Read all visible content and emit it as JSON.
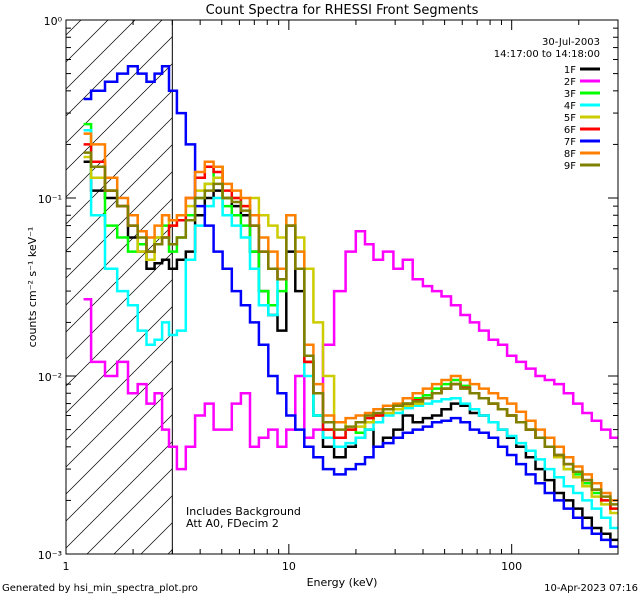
{
  "chart_data": {
    "type": "line",
    "title": "Count Spectra for RHESSI Front Segments",
    "xlabel": "Energy (keV)",
    "ylabel": "counts cm⁻² s⁻¹ keV⁻¹",
    "xscale": "log",
    "yscale": "log",
    "xlim": [
      1,
      300
    ],
    "ylim": [
      0.001,
      1
    ],
    "xticks": [
      {
        "value": 1,
        "label": "1"
      },
      {
        "value": 10,
        "label": "10"
      },
      {
        "value": 100,
        "label": "100"
      }
    ],
    "yticks": [
      {
        "value": 1,
        "label": "10⁰"
      },
      {
        "value": 0.1,
        "label": "10⁻¹"
      },
      {
        "value": 0.01,
        "label": "10⁻²"
      },
      {
        "value": 0.001,
        "label": "10⁻³"
      }
    ],
    "legend_position": "top-right",
    "info_lines": [
      "30-Jul-2003",
      "14:17:00 to 14:18:00"
    ],
    "annotations": [
      "Includes Background",
      "Att A0, FDecim 2"
    ],
    "hatched_region": {
      "x_from": 1,
      "x_to": 3
    },
    "energy_bins": [
      1.2,
      1.4,
      1.6,
      1.8,
      2.0,
      2.2,
      2.4,
      2.6,
      2.8,
      3.0,
      3.3,
      3.6,
      4.0,
      4.4,
      4.8,
      5.3,
      5.8,
      6.4,
      7.0,
      7.7,
      8.5,
      9.3,
      10.2,
      11.2,
      12.3,
      13.5,
      15,
      17,
      19,
      21,
      23,
      25,
      28,
      31,
      34,
      38,
      42,
      46,
      51,
      56,
      62,
      68,
      75,
      83,
      91,
      100,
      110,
      122,
      134,
      148,
      163,
      180,
      198,
      218,
      240,
      265,
      290
    ],
    "series": [
      {
        "name": "1F",
        "color": "#000000",
        "values": [
          0.16,
          0.11,
          0.1,
          0.09,
          0.06,
          0.05,
          0.04,
          0.043,
          0.045,
          0.04,
          0.045,
          0.05,
          0.08,
          0.1,
          0.11,
          0.1,
          0.09,
          0.08,
          0.05,
          0.03,
          0.022,
          0.018,
          0.05,
          0.03,
          0.012,
          0.006,
          0.004,
          0.0035,
          0.004,
          0.0045,
          0.005,
          0.004,
          0.0045,
          0.005,
          0.006,
          0.0055,
          0.0058,
          0.006,
          0.0065,
          0.007,
          0.0068,
          0.0062,
          0.006,
          0.0055,
          0.005,
          0.0045,
          0.004,
          0.0035,
          0.003,
          0.0026,
          0.0022,
          0.002,
          0.0018,
          0.0016,
          0.0014,
          0.0013,
          0.0012
        ]
      },
      {
        "name": "2F",
        "color": "#ff00ff",
        "values": [
          0.027,
          0.012,
          0.01,
          0.012,
          0.008,
          0.009,
          0.007,
          0.008,
          0.005,
          0.004,
          0.003,
          0.004,
          0.006,
          0.007,
          0.005,
          0.005,
          0.007,
          0.008,
          0.004,
          0.0045,
          0.005,
          0.004,
          0.005,
          0.01,
          0.0045,
          0.005,
          0.015,
          0.03,
          0.05,
          0.065,
          0.055,
          0.045,
          0.05,
          0.04,
          0.045,
          0.035,
          0.032,
          0.03,
          0.028,
          0.025,
          0.022,
          0.02,
          0.018,
          0.016,
          0.015,
          0.013,
          0.012,
          0.011,
          0.01,
          0.0095,
          0.009,
          0.008,
          0.007,
          0.0062,
          0.0056,
          0.005,
          0.0045
        ]
      },
      {
        "name": "3F",
        "color": "#00ff00",
        "values": [
          0.26,
          0.13,
          0.07,
          0.06,
          0.05,
          0.055,
          0.05,
          0.06,
          0.07,
          0.05,
          0.06,
          0.08,
          0.1,
          0.12,
          0.15,
          0.09,
          0.08,
          0.07,
          0.05,
          0.03,
          0.025,
          0.03,
          0.08,
          0.04,
          0.012,
          0.006,
          0.005,
          0.0045,
          0.005,
          0.0048,
          0.0055,
          0.006,
          0.0065,
          0.0068,
          0.007,
          0.0075,
          0.0078,
          0.0085,
          0.009,
          0.0095,
          0.0088,
          0.008,
          0.0075,
          0.007,
          0.0065,
          0.006,
          0.0055,
          0.005,
          0.0045,
          0.004,
          0.0035,
          0.003,
          0.0028,
          0.0025,
          0.0022,
          0.002,
          0.0018
        ]
      },
      {
        "name": "4F",
        "color": "#00ffff",
        "values": [
          0.24,
          0.08,
          0.04,
          0.03,
          0.025,
          0.018,
          0.015,
          0.016,
          0.02,
          0.017,
          0.018,
          0.045,
          0.07,
          0.09,
          0.1,
          0.08,
          0.07,
          0.06,
          0.04,
          0.025,
          0.022,
          0.04,
          0.08,
          0.05,
          0.01,
          0.006,
          0.0045,
          0.004,
          0.0042,
          0.0045,
          0.005,
          0.0055,
          0.006,
          0.0062,
          0.0066,
          0.0068,
          0.007,
          0.0072,
          0.0074,
          0.0075,
          0.007,
          0.0065,
          0.006,
          0.0055,
          0.005,
          0.0046,
          0.0042,
          0.0038,
          0.0034,
          0.003,
          0.0027,
          0.0024,
          0.0022,
          0.002,
          0.0018,
          0.0016,
          0.0014
        ]
      },
      {
        "name": "5F",
        "color": "#cccc00",
        "values": [
          0.17,
          0.13,
          0.11,
          0.09,
          0.08,
          0.05,
          0.045,
          0.06,
          0.08,
          0.07,
          0.075,
          0.09,
          0.11,
          0.12,
          0.13,
          0.1,
          0.1,
          0.09,
          0.1,
          0.08,
          0.07,
          0.06,
          0.07,
          0.06,
          0.04,
          0.02,
          0.01,
          0.0055,
          0.005,
          0.0052,
          0.0055,
          0.006,
          0.0062,
          0.0065,
          0.0068,
          0.007,
          0.0075,
          0.008,
          0.0085,
          0.009,
          0.0085,
          0.008,
          0.0075,
          0.007,
          0.0065,
          0.006,
          0.0055,
          0.005,
          0.0045,
          0.004,
          0.0035,
          0.003,
          0.0027,
          0.0024,
          0.0021,
          0.0019,
          0.0017
        ]
      },
      {
        "name": "6F",
        "color": "#ff0000",
        "values": [
          0.2,
          0.16,
          0.11,
          0.09,
          0.07,
          0.065,
          0.05,
          0.055,
          0.06,
          0.07,
          0.075,
          0.1,
          0.13,
          0.15,
          0.14,
          0.11,
          0.1,
          0.09,
          0.07,
          0.05,
          0.04,
          0.035,
          0.07,
          0.04,
          0.012,
          0.008,
          0.005,
          0.0045,
          0.005,
          0.0055,
          0.0058,
          0.006,
          0.0065,
          0.0068,
          0.007,
          0.0073,
          0.0075,
          0.008,
          0.0085,
          0.009,
          0.0086,
          0.008,
          0.0075,
          0.007,
          0.0065,
          0.006,
          0.0055,
          0.005,
          0.0045,
          0.004,
          0.0036,
          0.0032,
          0.0029,
          0.0026,
          0.0023,
          0.002,
          0.0018
        ]
      },
      {
        "name": "7F",
        "color": "#0000ff",
        "values": [
          0.36,
          0.4,
          0.45,
          0.5,
          0.55,
          0.5,
          0.45,
          0.5,
          0.55,
          0.4,
          0.3,
          0.2,
          0.09,
          0.07,
          0.05,
          0.04,
          0.03,
          0.025,
          0.02,
          0.015,
          0.01,
          0.008,
          0.006,
          0.005,
          0.004,
          0.0035,
          0.003,
          0.0028,
          0.003,
          0.0032,
          0.0035,
          0.004,
          0.0042,
          0.0045,
          0.0048,
          0.005,
          0.0052,
          0.0055,
          0.0056,
          0.0058,
          0.0055,
          0.005,
          0.0048,
          0.0045,
          0.004,
          0.0036,
          0.0032,
          0.0028,
          0.0025,
          0.0022,
          0.002,
          0.0018,
          0.0016,
          0.0014,
          0.0013,
          0.0012,
          0.0011
        ]
      },
      {
        "name": "8F",
        "color": "#ff8000",
        "values": [
          0.23,
          0.2,
          0.13,
          0.1,
          0.08,
          0.065,
          0.06,
          0.07,
          0.08,
          0.075,
          0.08,
          0.1,
          0.14,
          0.16,
          0.15,
          0.12,
          0.11,
          0.1,
          0.08,
          0.06,
          0.05,
          0.04,
          0.08,
          0.05,
          0.015,
          0.009,
          0.006,
          0.0055,
          0.0058,
          0.006,
          0.0062,
          0.0065,
          0.0068,
          0.007,
          0.0075,
          0.008,
          0.0085,
          0.009,
          0.0095,
          0.01,
          0.0095,
          0.009,
          0.0085,
          0.008,
          0.0075,
          0.007,
          0.0063,
          0.0056,
          0.005,
          0.0045,
          0.004,
          0.0035,
          0.0031,
          0.0028,
          0.0025,
          0.0022,
          0.002
        ]
      },
      {
        "name": "9F",
        "color": "#808000",
        "values": [
          0.18,
          0.15,
          0.11,
          0.09,
          0.07,
          0.06,
          0.05,
          0.055,
          0.06,
          0.055,
          0.06,
          0.075,
          0.1,
          0.11,
          0.12,
          0.1,
          0.095,
          0.085,
          0.07,
          0.05,
          0.04,
          0.035,
          0.07,
          0.04,
          0.013,
          0.008,
          0.0055,
          0.005,
          0.0052,
          0.0055,
          0.006,
          0.0062,
          0.0065,
          0.0068,
          0.007,
          0.0072,
          0.0075,
          0.008,
          0.0085,
          0.009,
          0.0085,
          0.008,
          0.0075,
          0.007,
          0.0065,
          0.006,
          0.0055,
          0.005,
          0.0045,
          0.004,
          0.0036,
          0.0032,
          0.0029,
          0.0026,
          0.0023,
          0.0021,
          0.0019
        ]
      }
    ]
  },
  "footer": {
    "generated_by": "Generated by hsi_min_spectra_plot.pro",
    "timestamp": "10-Apr-2023 07:16"
  }
}
